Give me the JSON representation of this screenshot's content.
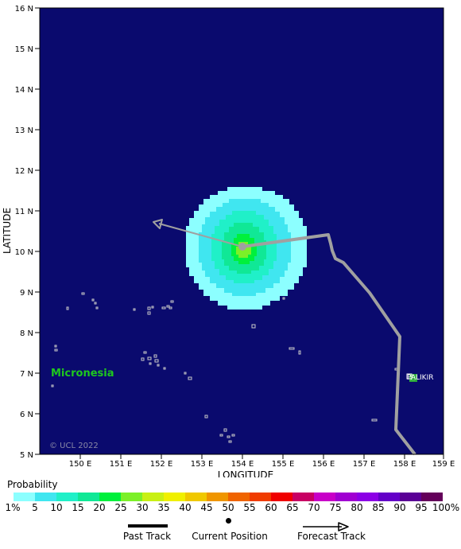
{
  "map": {
    "lat_labels": [
      "16 N",
      "15 N",
      "14 N",
      "13 N",
      "12 N",
      "11 N",
      "10 N",
      "9 N",
      "8 N",
      "7 N",
      "6 N",
      "5 N"
    ],
    "lon_labels": [
      "150 E",
      "151 E",
      "152 E",
      "153 E",
      "154 E",
      "155 E",
      "156 E",
      "157 E",
      "158 E",
      "159 E"
    ],
    "x_axis_title": "LONGITUDE",
    "y_axis_title": "LATITUDE",
    "region_label": "Micronesia",
    "city_label": "PALIKIR",
    "copyright": "© UCL 2022",
    "colors": {
      "ocean": "#0a0a6e",
      "track": "#a0a0a0",
      "land": "#c8c8c8",
      "prob_5": "#8cffff",
      "prob_10": "#40e6f0",
      "prob_15": "#20f0c8",
      "prob_20": "#10e896",
      "prob_25": "#00f03c",
      "center": "#ccff20"
    }
  },
  "legend": {
    "title": "Probability",
    "scale_colors": [
      "#8cffff",
      "#40e6f0",
      "#20f0c8",
      "#10e896",
      "#00f03c",
      "#7cf028",
      "#c8f014",
      "#f0f000",
      "#f0c800",
      "#f09600",
      "#f06400",
      "#f03c00",
      "#f00000",
      "#c80064",
      "#c800c8",
      "#a000d2",
      "#8c00e6",
      "#6400c8",
      "#5a0096",
      "#64005a"
    ],
    "scale_labels": [
      "1%",
      "5",
      "10",
      "15",
      "20",
      "25",
      "30",
      "35",
      "40",
      "45",
      "50",
      "55",
      "60",
      "65",
      "70",
      "75",
      "80",
      "85",
      "90",
      "95",
      "100%"
    ],
    "past_track_label": "Past Track",
    "current_position_label": "Current Position",
    "forecast_track_label": "Forecast Track"
  }
}
